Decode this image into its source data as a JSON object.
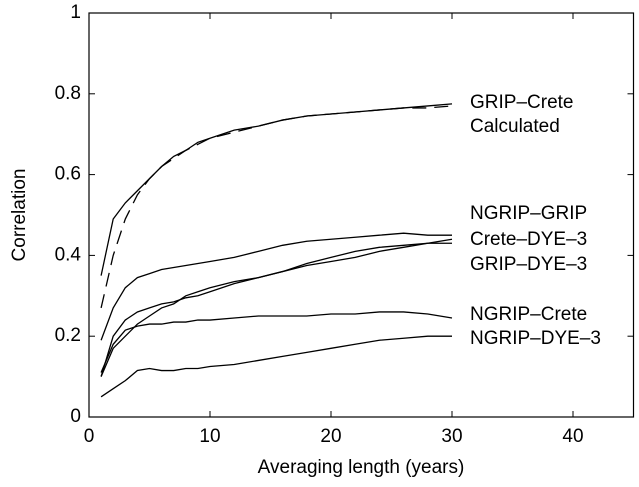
{
  "chart_data": {
    "type": "line",
    "xlabel": "Averaging length (years)",
    "ylabel": "Correlation",
    "xlim": [
      0,
      45
    ],
    "ylim": [
      0,
      1
    ],
    "xticks": [
      0,
      10,
      20,
      30,
      40
    ],
    "yticks": [
      0,
      0.2,
      0.4,
      0.6,
      0.8,
      1
    ],
    "x": [
      1,
      2,
      3,
      4,
      5,
      6,
      7,
      8,
      9,
      10,
      12,
      14,
      16,
      18,
      20,
      22,
      24,
      26,
      28,
      30
    ],
    "series": [
      {
        "name": "GRIP–Crete",
        "color": "#000000",
        "style": "solid",
        "values": [
          0.35,
          0.49,
          0.53,
          0.56,
          0.59,
          0.62,
          0.645,
          0.66,
          0.68,
          0.69,
          0.71,
          0.72,
          0.735,
          0.745,
          0.75,
          0.755,
          0.76,
          0.765,
          0.77,
          0.775
        ]
      },
      {
        "name": "Calculated",
        "color": "#000000",
        "style": "dashed",
        "values": [
          0.27,
          0.4,
          0.49,
          0.55,
          0.59,
          0.62,
          0.64,
          0.66,
          0.675,
          0.69,
          0.705,
          0.72,
          0.735,
          0.745,
          0.75,
          0.755,
          0.76,
          0.765,
          0.765,
          0.77
        ]
      },
      {
        "name": "NGRIP–GRIP",
        "color": "#000000",
        "style": "solid",
        "values": [
          0.19,
          0.27,
          0.32,
          0.345,
          0.355,
          0.365,
          0.37,
          0.375,
          0.38,
          0.385,
          0.395,
          0.41,
          0.425,
          0.435,
          0.44,
          0.445,
          0.45,
          0.455,
          0.45,
          0.45
        ]
      },
      {
        "name": "Crete–DYE–3",
        "color": "#000000",
        "style": "solid",
        "values": [
          0.1,
          0.2,
          0.24,
          0.26,
          0.27,
          0.28,
          0.285,
          0.295,
          0.3,
          0.31,
          0.33,
          0.345,
          0.36,
          0.375,
          0.385,
          0.395,
          0.41,
          0.42,
          0.43,
          0.44
        ]
      },
      {
        "name": "GRIP–DYE–3",
        "color": "#000000",
        "style": "solid",
        "values": [
          0.1,
          0.17,
          0.2,
          0.23,
          0.25,
          0.27,
          0.28,
          0.3,
          0.31,
          0.32,
          0.335,
          0.345,
          0.36,
          0.38,
          0.395,
          0.41,
          0.42,
          0.425,
          0.43,
          0.43
        ]
      },
      {
        "name": "NGRIP–Crete",
        "color": "#000000",
        "style": "solid",
        "values": [
          0.11,
          0.18,
          0.215,
          0.225,
          0.23,
          0.23,
          0.235,
          0.235,
          0.24,
          0.24,
          0.245,
          0.25,
          0.25,
          0.25,
          0.255,
          0.255,
          0.26,
          0.26,
          0.255,
          0.245
        ]
      },
      {
        "name": "NGRIP–DYE–3",
        "color": "#000000",
        "style": "solid",
        "values": [
          0.05,
          0.07,
          0.09,
          0.115,
          0.12,
          0.115,
          0.115,
          0.12,
          0.12,
          0.125,
          0.13,
          0.14,
          0.15,
          0.16,
          0.17,
          0.18,
          0.19,
          0.195,
          0.2,
          0.2
        ]
      }
    ]
  }
}
